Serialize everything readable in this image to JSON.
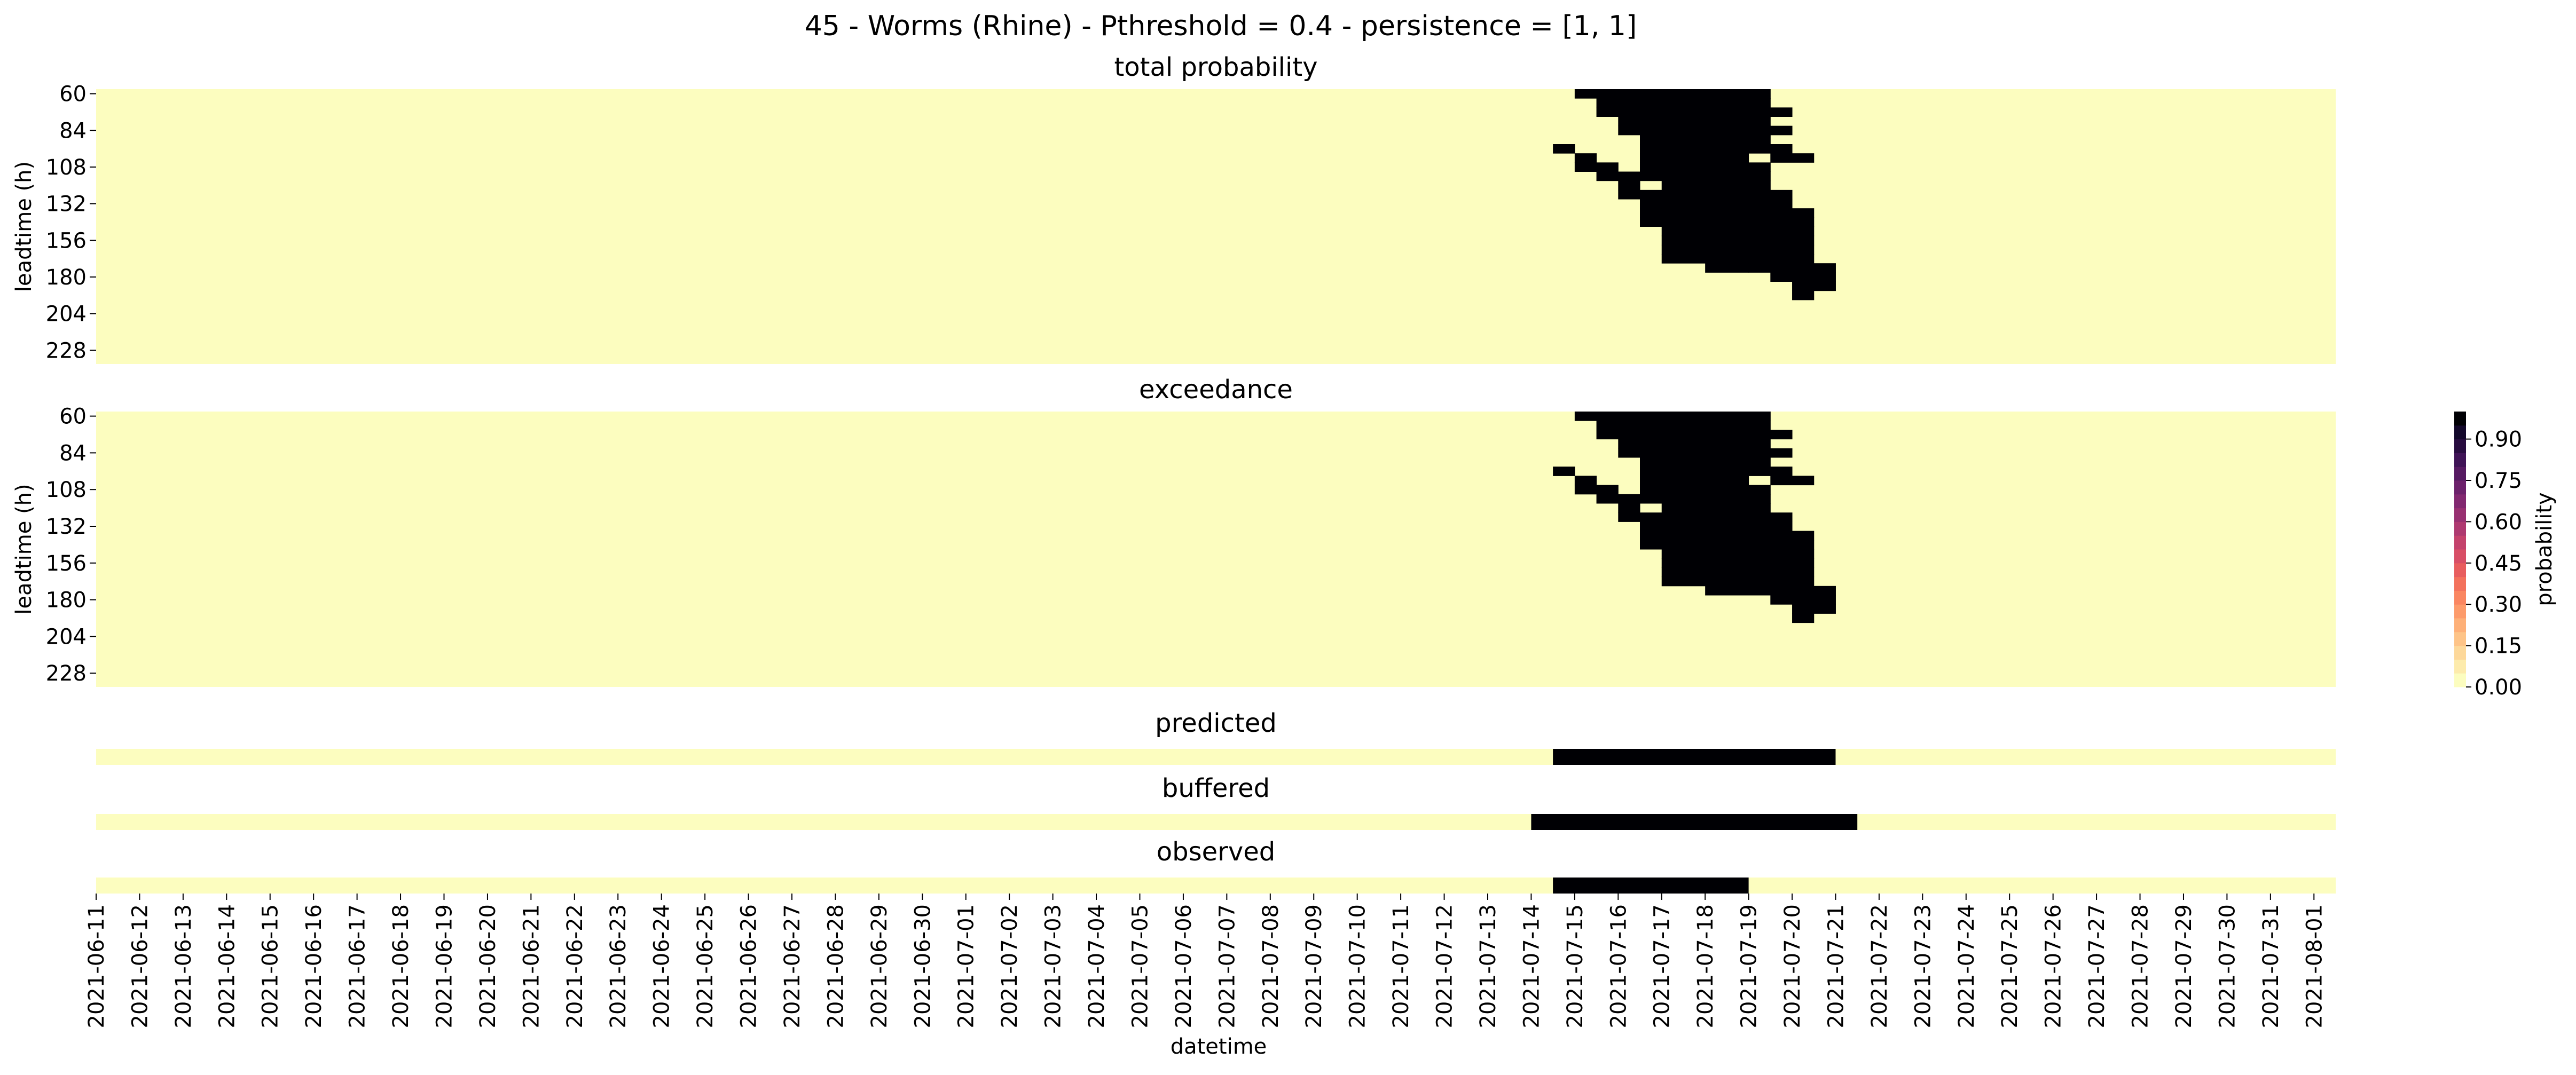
{
  "suptitle": "45 - Worms (Rhine) - Pthreshold = 0.4 - persistence = [1, 1]",
  "colors": {
    "background": "#fcfdbf",
    "event": "#000004",
    "axis": "#000000"
  },
  "chart_data": [
    {
      "type": "heatmap",
      "title": "total probability",
      "ylabel": "leadtime (h)",
      "y_tick_labels": [
        "60",
        "84",
        "108",
        "132",
        "156",
        "180",
        "204",
        "228"
      ],
      "leadtime_range_h": [
        60,
        240
      ],
      "leadtime_step_h": 6,
      "datetime_range": [
        "2021-06-11",
        "2021-08-01"
      ],
      "datetime_step_h": 12,
      "colormap": "magma_r",
      "value_range": [
        0,
        1
      ],
      "note_cells": "cells equal to 1.0 listed as [leadtime_h, [[start_datetime, end_datetime], ...]] with 12-hourly steps inclusive; all other cells 0.0",
      "cells_value_1": [
        [
          60,
          [
            [
              "2021-07-15T00",
              "2021-07-19T00"
            ]
          ]
        ],
        [
          66,
          [
            [
              "2021-07-15T12",
              "2021-07-19T00"
            ]
          ]
        ],
        [
          72,
          [
            [
              "2021-07-15T12",
              "2021-07-19T12"
            ]
          ]
        ],
        [
          78,
          [
            [
              "2021-07-16T00",
              "2021-07-19T00"
            ]
          ]
        ],
        [
          84,
          [
            [
              "2021-07-16T00",
              "2021-07-19T00"
            ],
            [
              "2021-07-19T12",
              "2021-07-19T12"
            ]
          ]
        ],
        [
          90,
          [
            [
              "2021-07-16T12",
              "2021-07-19T00"
            ]
          ]
        ],
        [
          96,
          [
            [
              "2021-07-14T12",
              "2021-07-14T12"
            ],
            [
              "2021-07-16T12",
              "2021-07-19T12"
            ]
          ]
        ],
        [
          102,
          [
            [
              "2021-07-15T00",
              "2021-07-15T00"
            ],
            [
              "2021-07-16T12",
              "2021-07-18T12"
            ],
            [
              "2021-07-19T12",
              "2021-07-20T00"
            ]
          ]
        ],
        [
          108,
          [
            [
              "2021-07-15T00",
              "2021-07-15T12"
            ],
            [
              "2021-07-16T12",
              "2021-07-19T00"
            ]
          ]
        ],
        [
          114,
          [
            [
              "2021-07-15T12",
              "2021-07-15T12"
            ],
            [
              "2021-07-16T00",
              "2021-07-16T00"
            ],
            [
              "2021-07-16T12",
              "2021-07-19T00"
            ]
          ]
        ],
        [
          120,
          [
            [
              "2021-07-16T00",
              "2021-07-16T00"
            ],
            [
              "2021-07-17T00",
              "2021-07-19T00"
            ]
          ]
        ],
        [
          126,
          [
            [
              "2021-07-16T00",
              "2021-07-16T12"
            ],
            [
              "2021-07-17T00",
              "2021-07-19T12"
            ]
          ]
        ],
        [
          132,
          [
            [
              "2021-07-16T12",
              "2021-07-16T12"
            ],
            [
              "2021-07-17T00",
              "2021-07-19T12"
            ]
          ]
        ],
        [
          138,
          [
            [
              "2021-07-16T12",
              "2021-07-17T00"
            ],
            [
              "2021-07-17T12",
              "2021-07-20T00"
            ]
          ]
        ],
        [
          144,
          [
            [
              "2021-07-16T12",
              "2021-07-17T00"
            ],
            [
              "2021-07-17T12",
              "2021-07-20T00"
            ]
          ]
        ],
        [
          150,
          [
            [
              "2021-07-17T00",
              "2021-07-20T00"
            ]
          ]
        ],
        [
          156,
          [
            [
              "2021-07-17T00",
              "2021-07-20T00"
            ]
          ]
        ],
        [
          162,
          [
            [
              "2021-07-17T00",
              "2021-07-17T00"
            ],
            [
              "2021-07-17T12",
              "2021-07-20T00"
            ]
          ]
        ],
        [
          168,
          [
            [
              "2021-07-17T00",
              "2021-07-20T00"
            ]
          ]
        ],
        [
          174,
          [
            [
              "2021-07-18T00",
              "2021-07-18T12"
            ],
            [
              "2021-07-19T00",
              "2021-07-20T12"
            ]
          ]
        ],
        [
          180,
          [
            [
              "2021-07-19T12",
              "2021-07-20T12"
            ]
          ]
        ],
        [
          186,
          [
            [
              "2021-07-20T00",
              "2021-07-20T12"
            ]
          ]
        ],
        [
          192,
          [
            [
              "2021-07-20T00",
              "2021-07-20T00"
            ]
          ]
        ]
      ]
    },
    {
      "type": "heatmap",
      "title": "exceedance",
      "ylabel": "leadtime (h)",
      "y_tick_labels": [
        "60",
        "84",
        "108",
        "132",
        "156",
        "180",
        "204",
        "228"
      ],
      "same_as": "total probability"
    },
    {
      "type": "heatmap",
      "title": "predicted",
      "event_range": [
        "2021-07-14T12",
        "2021-07-20T12"
      ]
    },
    {
      "type": "heatmap",
      "title": "buffered",
      "event_range": [
        "2021-07-14T00",
        "2021-07-21T00"
      ]
    },
    {
      "type": "heatmap",
      "title": "observed",
      "event_range": [
        "2021-07-14T12",
        "2021-07-18T12"
      ]
    }
  ],
  "xlabel": "datetime",
  "x_tick_labels": [
    "2021-06-11",
    "2021-06-12",
    "2021-06-13",
    "2021-06-14",
    "2021-06-15",
    "2021-06-16",
    "2021-06-17",
    "2021-06-18",
    "2021-06-19",
    "2021-06-20",
    "2021-06-21",
    "2021-06-22",
    "2021-06-23",
    "2021-06-24",
    "2021-06-25",
    "2021-06-26",
    "2021-06-27",
    "2021-06-28",
    "2021-06-29",
    "2021-06-30",
    "2021-07-01",
    "2021-07-02",
    "2021-07-03",
    "2021-07-04",
    "2021-07-05",
    "2021-07-06",
    "2021-07-07",
    "2021-07-08",
    "2021-07-09",
    "2021-07-10",
    "2021-07-11",
    "2021-07-12",
    "2021-07-13",
    "2021-07-14",
    "2021-07-15",
    "2021-07-16",
    "2021-07-17",
    "2021-07-18",
    "2021-07-19",
    "2021-07-20",
    "2021-07-21",
    "2021-07-22",
    "2021-07-23",
    "2021-07-24",
    "2021-07-25",
    "2021-07-26",
    "2021-07-27",
    "2021-07-28",
    "2021-07-29",
    "2021-07-30",
    "2021-07-31",
    "2021-08-01"
  ],
  "colorbar": {
    "label": "probability",
    "tick_labels": [
      "0.00",
      "0.15",
      "0.30",
      "0.45",
      "0.60",
      "0.75",
      "0.90"
    ],
    "range": [
      0,
      1
    ],
    "levels": 20,
    "colormap": "magma_r"
  }
}
